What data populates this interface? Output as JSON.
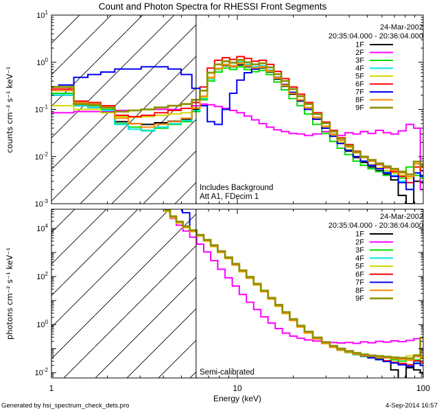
{
  "page": {
    "title": "Count and Photon Spectra for RHESSI Front Segments",
    "footer_left": "Generated by hsi_spectrum_check_dets.pro",
    "footer_right": "4-Sep-2014 16:57",
    "xlabel": "Energy (keV)",
    "x_tick_labels": [
      "1",
      "10",
      "100"
    ]
  },
  "chart_data": [
    {
      "type": "line",
      "panel": "counts",
      "ylabel": "counts cm⁻² s⁻¹ keV⁻¹",
      "xlabel": "Energy (keV)",
      "xscale": "log",
      "yscale": "log",
      "xlim": [
        1,
        100
      ],
      "ylim": [
        0.001,
        10
      ],
      "y_tick_exponents_labeled": [
        1,
        0,
        -1,
        -2,
        -3
      ],
      "grid": false,
      "legend_position": "upper-right",
      "date_label": "24-Mar-2002",
      "time_range_label": "20:35:04.000 - 20:36:04.000",
      "annotations": [
        "Includes Background",
        "Att A1, FDecim 1"
      ],
      "hatch_region_kev": [
        1,
        6
      ],
      "vline_kev": 6,
      "energies_kev": [
        1.0,
        1.2,
        1.45,
        1.7,
        2.0,
        2.4,
        2.8,
        3.3,
        3.9,
        4.6,
        5.4,
        6.0,
        6.6,
        7.2,
        7.9,
        8.7,
        9.5,
        10.4,
        11.4,
        12.5,
        13.7,
        15,
        16.5,
        18,
        20,
        22,
        24,
        27,
        30,
        33,
        36,
        40,
        44,
        48,
        53,
        58,
        64,
        70,
        77,
        85,
        93,
        100
      ],
      "series": [
        {
          "name": "1F",
          "color": "#000000",
          "values": [
            0.2,
            0.2,
            0.12,
            0.11,
            0.09,
            0.055,
            0.05,
            0.048,
            0.052,
            0.056,
            0.062,
            0.1,
            0.18,
            0.45,
            0.7,
            0.85,
            0.8,
            0.88,
            0.8,
            0.72,
            0.75,
            0.62,
            0.44,
            0.31,
            0.21,
            0.15,
            0.1,
            0.062,
            0.04,
            0.027,
            0.019,
            0.013,
            0.0095,
            0.0075,
            0.006,
            0.005,
            0.0042,
            0.0032,
            0.0015,
            0.001,
            0.003,
            0.0028
          ]
        },
        {
          "name": "2F",
          "color": "#FF00FF",
          "values": [
            0.085,
            0.085,
            0.09,
            0.09,
            0.092,
            0.095,
            0.095,
            0.1,
            0.1,
            0.1,
            0.105,
            0.12,
            0.13,
            0.125,
            0.115,
            0.105,
            0.095,
            0.085,
            0.072,
            0.06,
            0.05,
            0.042,
            0.037,
            0.034,
            0.031,
            0.03,
            0.028,
            0.03,
            0.034,
            0.03,
            0.028,
            0.032,
            0.03,
            0.034,
            0.031,
            0.036,
            0.032,
            0.03,
            0.035,
            0.048,
            0.04,
            0.002
          ]
        },
        {
          "name": "3F",
          "color": "#00DC00",
          "values": [
            0.22,
            0.22,
            0.13,
            0.12,
            0.1,
            0.05,
            0.042,
            0.036,
            0.04,
            0.048,
            0.055,
            0.09,
            0.16,
            0.4,
            0.62,
            0.75,
            0.7,
            0.8,
            0.7,
            0.63,
            0.67,
            0.55,
            0.38,
            0.26,
            0.17,
            0.12,
            0.08,
            0.048,
            0.031,
            0.021,
            0.015,
            0.011,
            0.008,
            0.0065,
            0.0055,
            0.0048,
            0.004,
            0.0045,
            0.0035,
            0.006,
            0.004,
            0.0035
          ]
        },
        {
          "name": "4F",
          "color": "#00E6E6",
          "values": [
            0.2,
            0.2,
            0.12,
            0.11,
            0.095,
            0.048,
            0.038,
            0.035,
            0.042,
            0.05,
            0.058,
            0.095,
            0.17,
            0.44,
            0.7,
            0.9,
            0.85,
            1.02,
            0.9,
            0.8,
            0.84,
            0.68,
            0.48,
            0.34,
            0.23,
            0.16,
            0.11,
            0.065,
            0.042,
            0.028,
            0.02,
            0.014,
            0.01,
            0.008,
            0.0065,
            0.0055,
            0.0048,
            0.004,
            0.003,
            0.002,
            0.0045,
            0.004
          ]
        },
        {
          "name": "5F",
          "color": "#D6D600",
          "values": [
            0.12,
            0.12,
            0.1,
            0.1,
            0.085,
            0.07,
            0.068,
            0.07,
            0.075,
            0.08,
            0.085,
            0.11,
            0.18,
            0.46,
            0.72,
            0.88,
            0.82,
            0.95,
            0.83,
            0.74,
            0.78,
            0.64,
            0.46,
            0.32,
            0.22,
            0.155,
            0.105,
            0.065,
            0.042,
            0.028,
            0.02,
            0.014,
            0.01,
            0.008,
            0.0068,
            0.0058,
            0.005,
            0.0045,
            0.004,
            0.0035,
            0.006,
            0.005
          ]
        },
        {
          "name": "6F",
          "color": "#FF0000",
          "values": [
            0.27,
            0.27,
            0.15,
            0.14,
            0.12,
            0.075,
            0.07,
            0.075,
            0.085,
            0.095,
            0.105,
            0.14,
            0.3,
            0.75,
            1.1,
            1.25,
            1.15,
            1.32,
            1.2,
            1.05,
            1.1,
            0.9,
            0.64,
            0.45,
            0.3,
            0.21,
            0.14,
            0.085,
            0.054,
            0.036,
            0.025,
            0.018,
            0.013,
            0.01,
            0.008,
            0.0068,
            0.0058,
            0.0048,
            0.0038,
            0.0028,
            0.006,
            0.005
          ]
        },
        {
          "name": "7F",
          "color": "#0000EE",
          "values": [
            0.3,
            0.33,
            0.48,
            0.55,
            0.62,
            0.72,
            0.72,
            0.8,
            0.8,
            0.72,
            0.55,
            0.28,
            0.12,
            0.055,
            0.048,
            0.1,
            0.22,
            0.42,
            0.6,
            0.72,
            0.8,
            0.66,
            0.48,
            0.34,
            0.23,
            0.155,
            0.1,
            0.062,
            0.04,
            0.027,
            0.019,
            0.0135,
            0.01,
            0.008,
            0.0065,
            0.0055,
            0.0045,
            0.0038,
            0.0028,
            0.002,
            0.0045,
            0.0038
          ]
        },
        {
          "name": "8F",
          "color": "#FF8800",
          "values": [
            0.25,
            0.25,
            0.14,
            0.13,
            0.11,
            0.065,
            0.05,
            0.042,
            0.048,
            0.055,
            0.065,
            0.105,
            0.19,
            0.48,
            0.74,
            0.9,
            0.84,
            0.97,
            0.85,
            0.76,
            0.8,
            0.66,
            0.47,
            0.33,
            0.22,
            0.16,
            0.11,
            0.068,
            0.044,
            0.03,
            0.022,
            0.016,
            0.012,
            0.0095,
            0.008,
            0.007,
            0.006,
            0.0052,
            0.0045,
            0.0038,
            0.007,
            0.006
          ]
        },
        {
          "name": "9F",
          "color": "#909000",
          "start_drop": "bottom",
          "values": [
            0.3,
            0.3,
            0.13,
            0.125,
            0.11,
            0.09,
            0.095,
            0.1,
            0.11,
            0.12,
            0.13,
            0.16,
            0.25,
            0.6,
            0.9,
            1.05,
            0.98,
            1.12,
            1.0,
            0.9,
            0.95,
            0.78,
            0.56,
            0.4,
            0.27,
            0.19,
            0.13,
            0.08,
            0.051,
            0.034,
            0.024,
            0.017,
            0.0125,
            0.01,
            0.0085,
            0.0072,
            0.0062,
            0.0055,
            0.0048,
            0.0042,
            0.0078,
            0.0065
          ]
        }
      ]
    },
    {
      "type": "line",
      "panel": "photons",
      "ylabel": "photons cm⁻² s⁻¹ keV⁻¹",
      "xlabel": "Energy (keV)",
      "xscale": "log",
      "yscale": "log",
      "xlim": [
        1,
        100
      ],
      "ylim": [
        0.006,
        63000
      ],
      "y_tick_exponents_labeled": [
        4,
        2,
        0,
        -2
      ],
      "grid": false,
      "legend_position": "upper-right",
      "date_label": "24-Mar-2002",
      "time_range_label": "20:35:04.000 - 20:36:04.000",
      "annotations": [
        "Semi-calibrated"
      ],
      "hatch_region_kev": [
        1,
        6
      ],
      "vline_kev": 6,
      "energies_kev": [
        4.2,
        4.5,
        4.9,
        5.3,
        5.8,
        6.3,
        6.9,
        7.5,
        8.2,
        9.0,
        9.8,
        10.7,
        11.7,
        12.8,
        14.0,
        15.3,
        16.7,
        18.3,
        20,
        22,
        24,
        27,
        30,
        33,
        36,
        40,
        44,
        48,
        53,
        58,
        64,
        70,
        77,
        85,
        93,
        100
      ],
      "series": [
        {
          "name": "1F",
          "color": "#000000",
          "values": [
            55000,
            30000,
            18000,
            11500,
            7800,
            5000,
            3100,
            1850,
            1050,
            580,
            310,
            165,
            88,
            46,
            24,
            12,
            6.0,
            3.0,
            1.55,
            0.82,
            0.46,
            0.26,
            0.165,
            0.115,
            0.088,
            0.07,
            0.057,
            0.048,
            0.041,
            0.035,
            0.03,
            0.013,
            0.005,
            0.016,
            0.013,
            0.01
          ]
        },
        {
          "name": "2F",
          "color": "#FF00FF",
          "values": [
            52000,
            26000,
            13500,
            7800,
            4300,
            2200,
            1050,
            460,
            200,
            88,
            40,
            18,
            8.5,
            4.2,
            2.1,
            1.15,
            0.68,
            0.44,
            0.33,
            0.27,
            0.23,
            0.205,
            0.19,
            0.18,
            0.17,
            0.18,
            0.165,
            0.19,
            0.175,
            0.2,
            0.185,
            0.21,
            0.195,
            0.22,
            0.26,
            0.1
          ]
        },
        {
          "name": "3F",
          "color": "#00DC00",
          "values": [
            53000,
            29000,
            17500,
            11200,
            7600,
            4900,
            3050,
            1800,
            1020,
            565,
            300,
            160,
            86,
            45,
            23.5,
            11.7,
            5.9,
            2.95,
            1.5,
            0.8,
            0.45,
            0.25,
            0.16,
            0.112,
            0.085,
            0.068,
            0.055,
            0.047,
            0.043,
            0.04,
            0.044,
            0.034,
            0.03,
            0.04,
            0.034,
            0.03
          ]
        },
        {
          "name": "4F",
          "color": "#00E6E6",
          "values": [
            54000,
            29500,
            17700,
            11300,
            7700,
            4950,
            3070,
            1820,
            1030,
            570,
            305,
            162,
            87,
            45.5,
            23.8,
            11.8,
            6.0,
            2.98,
            1.52,
            0.81,
            0.455,
            0.255,
            0.162,
            0.113,
            0.086,
            0.069,
            0.056,
            0.048,
            0.041,
            0.035,
            0.03,
            0.026,
            0.023,
            0.019,
            0.028,
            0.024
          ]
        },
        {
          "name": "5F",
          "color": "#D6D600",
          "values": [
            50000,
            27500,
            16800,
            10800,
            7400,
            4750,
            2950,
            1750,
            990,
            550,
            295,
            157,
            84,
            44,
            23,
            11.4,
            5.7,
            2.85,
            1.46,
            0.78,
            0.44,
            0.25,
            0.16,
            0.112,
            0.087,
            0.071,
            0.06,
            0.053,
            0.049,
            0.046,
            0.043,
            0.041,
            0.038,
            0.05,
            0.055,
            0.045
          ]
        },
        {
          "name": "6F",
          "color": "#FF0000",
          "values": [
            56000,
            31000,
            18600,
            11900,
            8100,
            5200,
            3220,
            1920,
            1090,
            600,
            322,
            172,
            92,
            48,
            25,
            12.5,
            6.3,
            3.12,
            1.6,
            0.85,
            0.48,
            0.27,
            0.172,
            0.12,
            0.091,
            0.073,
            0.059,
            0.05,
            0.042,
            0.036,
            0.031,
            0.027,
            0.024,
            0.021,
            0.031,
            0.025
          ]
        },
        {
          "name": "7F",
          "color": "#0000EE",
          "start_drop": "top",
          "values": [
            null,
            null,
            null,
            45000,
            8200,
            5300,
            3280,
            1950,
            1110,
            610,
            328,
            175,
            94,
            49,
            25.5,
            12.7,
            6.4,
            3.18,
            1.63,
            0.87,
            0.49,
            0.275,
            0.175,
            0.122,
            0.093,
            0.075,
            0.061,
            0.051,
            0.042,
            0.035,
            0.029,
            0.025,
            0.021,
            0.018,
            0.024,
            0.02
          ]
        },
        {
          "name": "8F",
          "color": "#FF8800",
          "values": [
            53500,
            29200,
            17600,
            11250,
            7650,
            4920,
            3060,
            1810,
            1025,
            568,
            303,
            161,
            86.5,
            45.2,
            23.6,
            11.75,
            5.95,
            2.96,
            1.51,
            0.805,
            0.452,
            0.253,
            0.161,
            0.113,
            0.087,
            0.071,
            0.059,
            0.052,
            0.048,
            0.044,
            0.041,
            0.039,
            0.036,
            0.033,
            0.047,
            0.039
          ]
        },
        {
          "name": "9F",
          "color": "#909000",
          "values": [
            58000,
            32000,
            19200,
            12300,
            8400,
            5400,
            3350,
            2000,
            1130,
            625,
            335,
            180,
            96,
            50,
            26,
            13,
            6.6,
            3.3,
            1.7,
            0.9,
            0.51,
            0.29,
            0.185,
            0.13,
            0.1,
            0.08,
            0.066,
            0.057,
            0.052,
            0.049,
            0.046,
            0.043,
            0.041,
            0.039,
            0.052,
            0.28
          ]
        }
      ]
    }
  ]
}
